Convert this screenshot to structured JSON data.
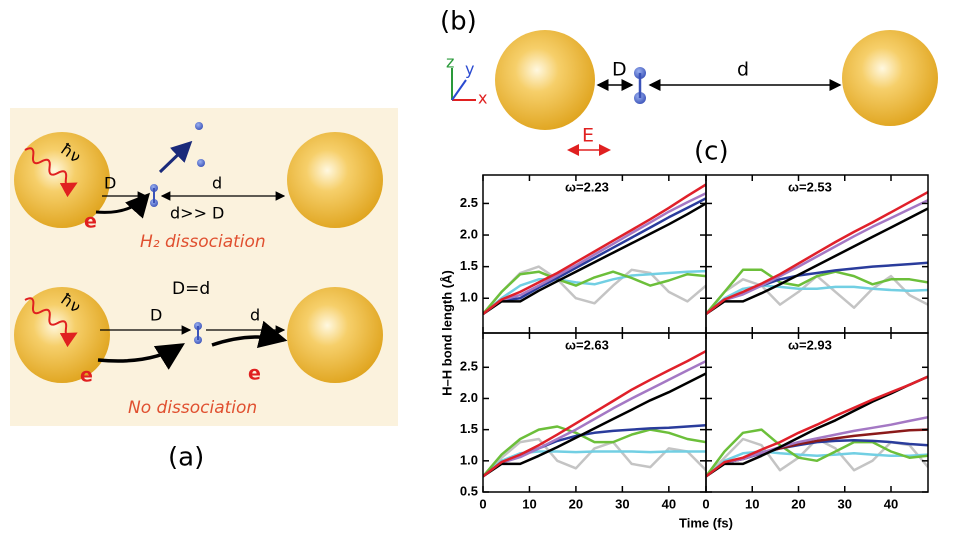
{
  "panel_a": {
    "label": "(a)",
    "top": {
      "hv": "ħν",
      "e": "e",
      "D": "D",
      "d": "d",
      "relation": "d>> D",
      "caption": "H₂ dissociation"
    },
    "bottom": {
      "hv": "ħν",
      "e_left": "e",
      "e_right": "e",
      "relation": "D=d",
      "D": "D",
      "d": "d",
      "caption": "No dissociation"
    }
  },
  "panel_b": {
    "label": "(b)",
    "z": "z",
    "y": "y",
    "x": "x",
    "D": "D",
    "d": "d",
    "E": "E"
  },
  "panel_c": {
    "label": "(c)",
    "ylabel": "H–H bond length (Å)",
    "xlabel": "Time (fs)"
  },
  "chart_data": [
    {
      "type": "line",
      "title": "ω=2.23",
      "x": [
        0,
        4,
        8,
        12,
        16,
        20,
        24,
        28,
        32,
        36,
        40,
        44,
        48
      ],
      "xlim": [
        0,
        48
      ],
      "xticks": [
        0,
        10,
        20,
        30,
        40
      ],
      "xtick_labels": false,
      "ylim": [
        0.45,
        2.95
      ],
      "yticks": [
        {
          "value": 1.0,
          "label": "1.0"
        },
        {
          "value": 1.5,
          "label": "1.5"
        },
        {
          "value": 2.0,
          "label": "2.0"
        },
        {
          "value": 2.5,
          "label": "2.5"
        }
      ],
      "ytick_labels": true,
      "series": [
        {
          "color": "#c4c4c4",
          "values": [
            0.75,
            1.1,
            1.4,
            1.5,
            1.3,
            1.0,
            0.92,
            1.2,
            1.45,
            1.4,
            1.1,
            0.95,
            1.2
          ]
        },
        {
          "color": "#72cfe3",
          "values": [
            0.75,
            1.0,
            1.2,
            1.3,
            1.3,
            1.25,
            1.22,
            1.3,
            1.36,
            1.38,
            1.4,
            1.42,
            1.43
          ]
        },
        {
          "color": "#6cbf3a",
          "values": [
            0.75,
            1.1,
            1.38,
            1.42,
            1.3,
            1.2,
            1.33,
            1.42,
            1.32,
            1.2,
            1.28,
            1.38,
            1.35
          ]
        },
        {
          "color": "#2a3c9c",
          "values": [
            0.75,
            0.96,
            1.0,
            1.17,
            1.32,
            1.48,
            1.64,
            1.8,
            1.96,
            2.12,
            2.28,
            2.43,
            2.58
          ]
        },
        {
          "color": "#a478c4",
          "values": [
            0.75,
            0.97,
            1.05,
            1.2,
            1.36,
            1.52,
            1.69,
            1.86,
            2.03,
            2.2,
            2.37,
            2.52,
            2.66
          ]
        },
        {
          "color": "#000000",
          "values": [
            0.75,
            0.95,
            0.95,
            1.12,
            1.27,
            1.42,
            1.57,
            1.72,
            1.87,
            2.02,
            2.17,
            2.33,
            2.5
          ]
        },
        {
          "color": "#e0202a",
          "values": [
            0.75,
            0.98,
            1.1,
            1.25,
            1.4,
            1.57,
            1.74,
            1.91,
            2.08,
            2.25,
            2.43,
            2.62,
            2.8
          ]
        }
      ]
    },
    {
      "type": "line",
      "title": "ω=2.53",
      "x": [
        0,
        4,
        8,
        12,
        16,
        20,
        24,
        28,
        32,
        36,
        40,
        44,
        48
      ],
      "xlim": [
        0,
        48
      ],
      "xticks": [
        0,
        10,
        20,
        30,
        40
      ],
      "xtick_labels": false,
      "ylim": [
        0.45,
        2.95
      ],
      "yticks": [
        1.0,
        1.5,
        2.0,
        2.5
      ],
      "ytick_labels": false,
      "series": [
        {
          "color": "#c4c4c4",
          "values": [
            0.75,
            1.1,
            1.3,
            1.2,
            0.9,
            1.1,
            1.35,
            1.1,
            0.85,
            1.15,
            1.35,
            1.05,
            0.9
          ]
        },
        {
          "color": "#72cfe3",
          "values": [
            0.75,
            1.0,
            1.15,
            1.2,
            1.18,
            1.15,
            1.15,
            1.18,
            1.18,
            1.15,
            1.13,
            1.12,
            1.13
          ]
        },
        {
          "color": "#6cbf3a",
          "values": [
            0.75,
            1.1,
            1.45,
            1.45,
            1.25,
            1.2,
            1.35,
            1.42,
            1.35,
            1.22,
            1.3,
            1.3,
            1.25
          ]
        },
        {
          "color": "#2a3c9c",
          "values": [
            0.75,
            0.98,
            1.08,
            1.2,
            1.3,
            1.36,
            1.4,
            1.44,
            1.47,
            1.5,
            1.52,
            1.54,
            1.56
          ]
        },
        {
          "color": "#a478c4",
          "values": [
            0.75,
            0.97,
            1.06,
            1.2,
            1.35,
            1.5,
            1.66,
            1.82,
            1.98,
            2.13,
            2.27,
            2.41,
            2.55
          ]
        },
        {
          "color": "#000000",
          "values": [
            0.75,
            0.95,
            0.95,
            1.08,
            1.22,
            1.37,
            1.52,
            1.67,
            1.82,
            1.97,
            2.12,
            2.27,
            2.42
          ]
        },
        {
          "color": "#e0202a",
          "values": [
            0.75,
            0.98,
            1.1,
            1.23,
            1.38,
            1.55,
            1.72,
            1.89,
            2.05,
            2.2,
            2.36,
            2.52,
            2.68
          ]
        }
      ]
    },
    {
      "type": "line",
      "title": "ω=2.63",
      "x": [
        0,
        4,
        8,
        12,
        16,
        20,
        24,
        28,
        32,
        36,
        40,
        44,
        48
      ],
      "xlim": [
        0,
        48
      ],
      "xticks": [
        0,
        10,
        20,
        30,
        40
      ],
      "xtick_labels": true,
      "ylim": [
        0.5,
        3.05
      ],
      "yticks": [
        {
          "value": 0.5,
          "label": "0.5"
        },
        {
          "value": 1.0,
          "label": "1.0"
        },
        {
          "value": 1.5,
          "label": "1.5"
        },
        {
          "value": 2.0,
          "label": "2.0"
        },
        {
          "value": 2.5,
          "label": "2.5"
        }
      ],
      "ytick_labels": true,
      "series": [
        {
          "color": "#c4c4c4",
          "values": [
            0.75,
            1.05,
            1.3,
            1.35,
            1.0,
            0.88,
            1.2,
            1.3,
            0.95,
            0.9,
            1.2,
            1.15,
            0.85
          ]
        },
        {
          "color": "#72cfe3",
          "values": [
            0.75,
            1.0,
            1.12,
            1.15,
            1.15,
            1.14,
            1.15,
            1.15,
            1.15,
            1.14,
            1.15,
            1.15,
            1.15
          ]
        },
        {
          "color": "#6cbf3a",
          "values": [
            0.75,
            1.1,
            1.35,
            1.5,
            1.55,
            1.45,
            1.3,
            1.3,
            1.42,
            1.5,
            1.45,
            1.35,
            1.3
          ]
        },
        {
          "color": "#2a3c9c",
          "values": [
            0.75,
            0.98,
            1.08,
            1.2,
            1.32,
            1.4,
            1.45,
            1.48,
            1.5,
            1.52,
            1.53,
            1.55,
            1.57
          ]
        },
        {
          "color": "#a478c4",
          "values": [
            0.75,
            0.97,
            1.06,
            1.2,
            1.35,
            1.5,
            1.67,
            1.84,
            2.0,
            2.15,
            2.3,
            2.45,
            2.6
          ]
        },
        {
          "color": "#000000",
          "values": [
            0.75,
            0.95,
            0.95,
            1.08,
            1.22,
            1.37,
            1.52,
            1.67,
            1.82,
            1.97,
            2.1,
            2.25,
            2.4
          ]
        },
        {
          "color": "#e0202a",
          "values": [
            0.75,
            0.98,
            1.1,
            1.25,
            1.42,
            1.6,
            1.78,
            1.96,
            2.14,
            2.3,
            2.45,
            2.6,
            2.76
          ]
        }
      ]
    },
    {
      "type": "line",
      "title": "ω=2.93",
      "x": [
        0,
        4,
        8,
        12,
        16,
        20,
        24,
        28,
        32,
        36,
        40,
        44,
        48
      ],
      "xlim": [
        0,
        48
      ],
      "xticks": [
        0,
        10,
        20,
        30,
        40
      ],
      "xtick_labels": true,
      "ylim": [
        0.5,
        3.05
      ],
      "yticks": [
        0.5,
        1.0,
        1.5,
        2.0,
        2.5
      ],
      "ytick_labels": false,
      "series": [
        {
          "color": "#c4c4c4",
          "values": [
            0.75,
            1.05,
            1.35,
            1.25,
            0.85,
            1.05,
            1.35,
            1.2,
            0.85,
            1.0,
            1.3,
            1.25,
            0.9
          ]
        },
        {
          "color": "#72cfe3",
          "values": [
            0.75,
            1.0,
            1.12,
            1.15,
            1.12,
            1.1,
            1.08,
            1.1,
            1.12,
            1.1,
            1.08,
            1.08,
            1.1
          ]
        },
        {
          "color": "#6cbf3a",
          "values": [
            0.75,
            1.15,
            1.45,
            1.5,
            1.25,
            1.05,
            1.0,
            1.15,
            1.3,
            1.3,
            1.15,
            1.05,
            1.08
          ]
        },
        {
          "color": "#2a3c9c",
          "values": [
            0.75,
            0.97,
            1.03,
            1.12,
            1.2,
            1.25,
            1.3,
            1.32,
            1.33,
            1.32,
            1.3,
            1.27,
            1.25
          ]
        },
        {
          "color": "#8b1a1a",
          "values": [
            0.75,
            0.97,
            1.03,
            1.13,
            1.2,
            1.27,
            1.32,
            1.36,
            1.4,
            1.43,
            1.46,
            1.49,
            1.5
          ]
        },
        {
          "color": "#a478c4",
          "values": [
            0.75,
            0.97,
            1.03,
            1.13,
            1.22,
            1.3,
            1.36,
            1.42,
            1.48,
            1.53,
            1.58,
            1.64,
            1.7
          ]
        },
        {
          "color": "#000000",
          "values": [
            0.75,
            0.95,
            0.95,
            1.08,
            1.22,
            1.37,
            1.52,
            1.65,
            1.8,
            1.95,
            2.08,
            2.22,
            2.35
          ]
        },
        {
          "color": "#e0202a",
          "values": [
            0.75,
            0.98,
            1.05,
            1.18,
            1.3,
            1.45,
            1.58,
            1.72,
            1.85,
            1.98,
            2.1,
            2.22,
            2.35
          ]
        }
      ]
    }
  ]
}
